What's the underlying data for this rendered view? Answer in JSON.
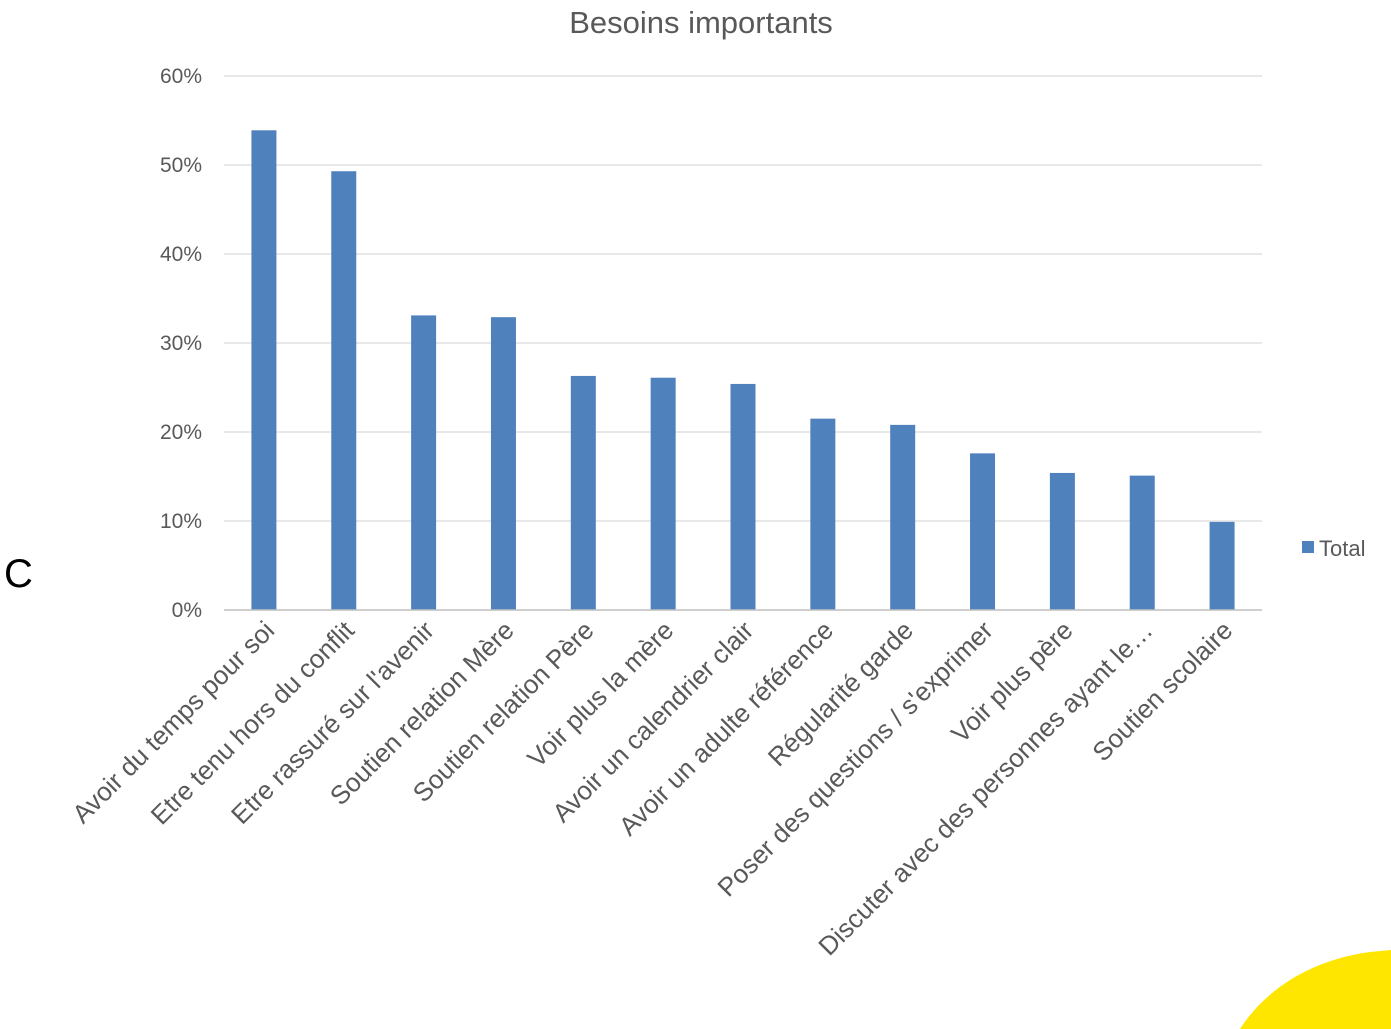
{
  "panel_letter": "C",
  "colors": {
    "bar": "#4F81BD",
    "grid": "#D9D9D9",
    "axis": "#BFBFBF",
    "text": "#595959",
    "decoration": "#FFE600"
  },
  "chart_data": {
    "type": "bar",
    "title": "Besoins importants",
    "xlabel": "",
    "ylabel": "",
    "ylim": [
      0,
      60
    ],
    "yticks": [
      "0%",
      "10%",
      "20%",
      "30%",
      "40%",
      "50%",
      "60%"
    ],
    "grid": true,
    "legend_position": "right",
    "categories": [
      "Avoir du temps pour soi",
      "Etre tenu hors du conflit",
      "Etre rassuré sur l'avenir",
      "Soutien relation Mère",
      "Soutien relation Père",
      "Voir plus la mère",
      "Avoir un calendrier clair",
      "Avoir un adulte référence",
      "Régularité garde",
      "Poser des questions / s'exprimer",
      "Voir plus père",
      "Discuter avec des personnes ayant le…",
      "Soutien scolaire"
    ],
    "series": [
      {
        "name": "Total",
        "values": [
          53.9,
          49.3,
          33.1,
          32.9,
          26.3,
          26.1,
          25.4,
          21.5,
          20.8,
          17.6,
          15.4,
          15.1,
          9.9
        ]
      }
    ]
  }
}
